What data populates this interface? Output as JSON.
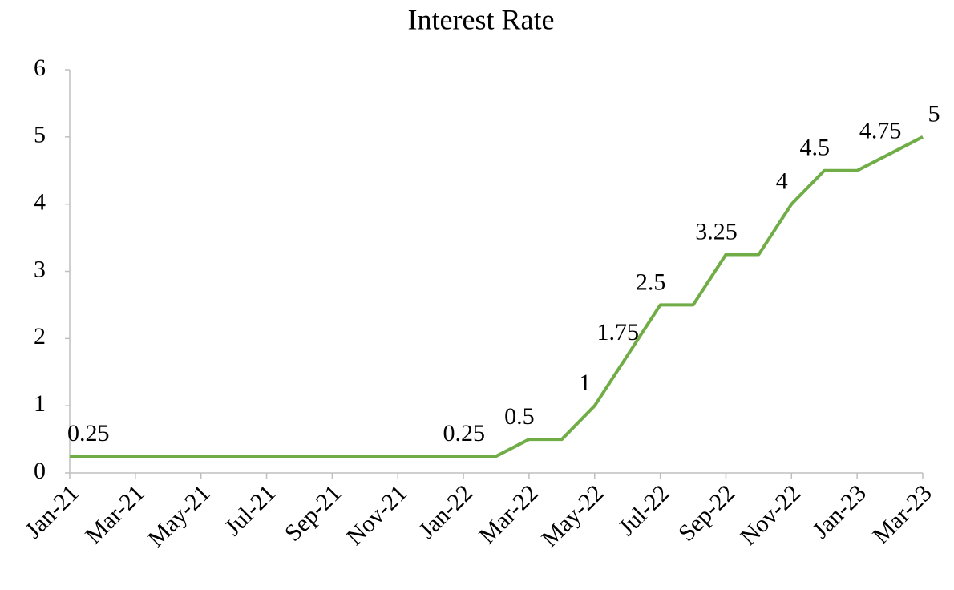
{
  "chart_data": {
    "type": "line",
    "title": "Interest Rate",
    "categories": [
      "Jan-21",
      null,
      "Mar-21",
      null,
      "May-21",
      null,
      "Jul-21",
      null,
      "Sep-21",
      null,
      "Nov-21",
      null,
      "Jan-22",
      null,
      "Mar-22",
      null,
      "May-22",
      null,
      "Jul-22",
      null,
      "Sep-22",
      null,
      "Nov-22",
      null,
      "Jan-23",
      null,
      "Mar-23"
    ],
    "series": [
      {
        "name": "Interest Rate",
        "color": "#70ad47",
        "values": [
          0.25,
          0.25,
          0.25,
          0.25,
          0.25,
          0.25,
          0.25,
          0.25,
          0.25,
          0.25,
          0.25,
          0.25,
          0.25,
          0.25,
          0.5,
          0.5,
          1,
          1.75,
          2.5,
          2.5,
          3.25,
          3.25,
          4,
          4.5,
          4.5,
          4.75,
          5
        ],
        "value_labels": [
          "0.25",
          null,
          null,
          null,
          null,
          null,
          null,
          null,
          null,
          null,
          null,
          null,
          null,
          "0.25",
          "0.5",
          null,
          "1",
          "1.75",
          "2.5",
          null,
          "3.25",
          null,
          "4",
          "4.5",
          null,
          "4.75",
          "5"
        ]
      }
    ],
    "ylim": [
      0,
      6
    ],
    "yticks": [
      0,
      1,
      2,
      3,
      4,
      5,
      6
    ],
    "grid": false
  }
}
